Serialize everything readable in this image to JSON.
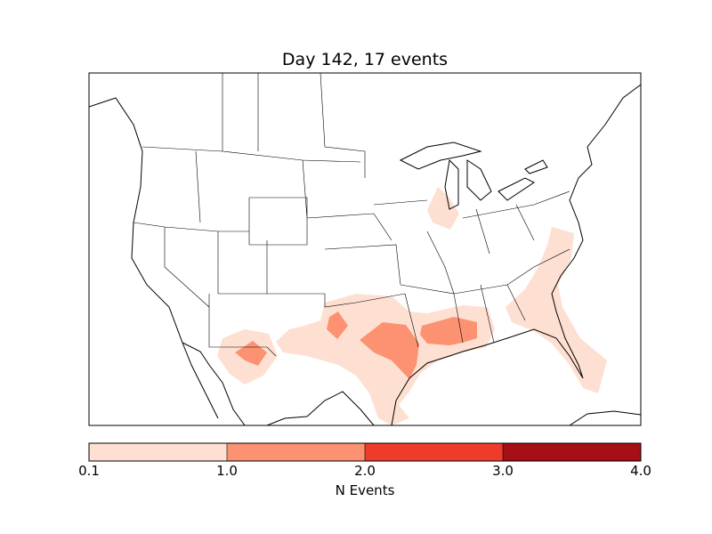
{
  "title": "Day 142, 17 events",
  "colorbar": {
    "label": "N Events",
    "ticks": [
      "0.1",
      "1.0",
      "2.0",
      "3.0",
      "4.0"
    ],
    "colors": [
      "#fee0d2",
      "#fc9272",
      "#ef3b2c",
      "#a50f15"
    ]
  },
  "map": {
    "region": "Continental United States",
    "projection_frame_color": "#000000",
    "land_color": "#ffffff"
  }
}
